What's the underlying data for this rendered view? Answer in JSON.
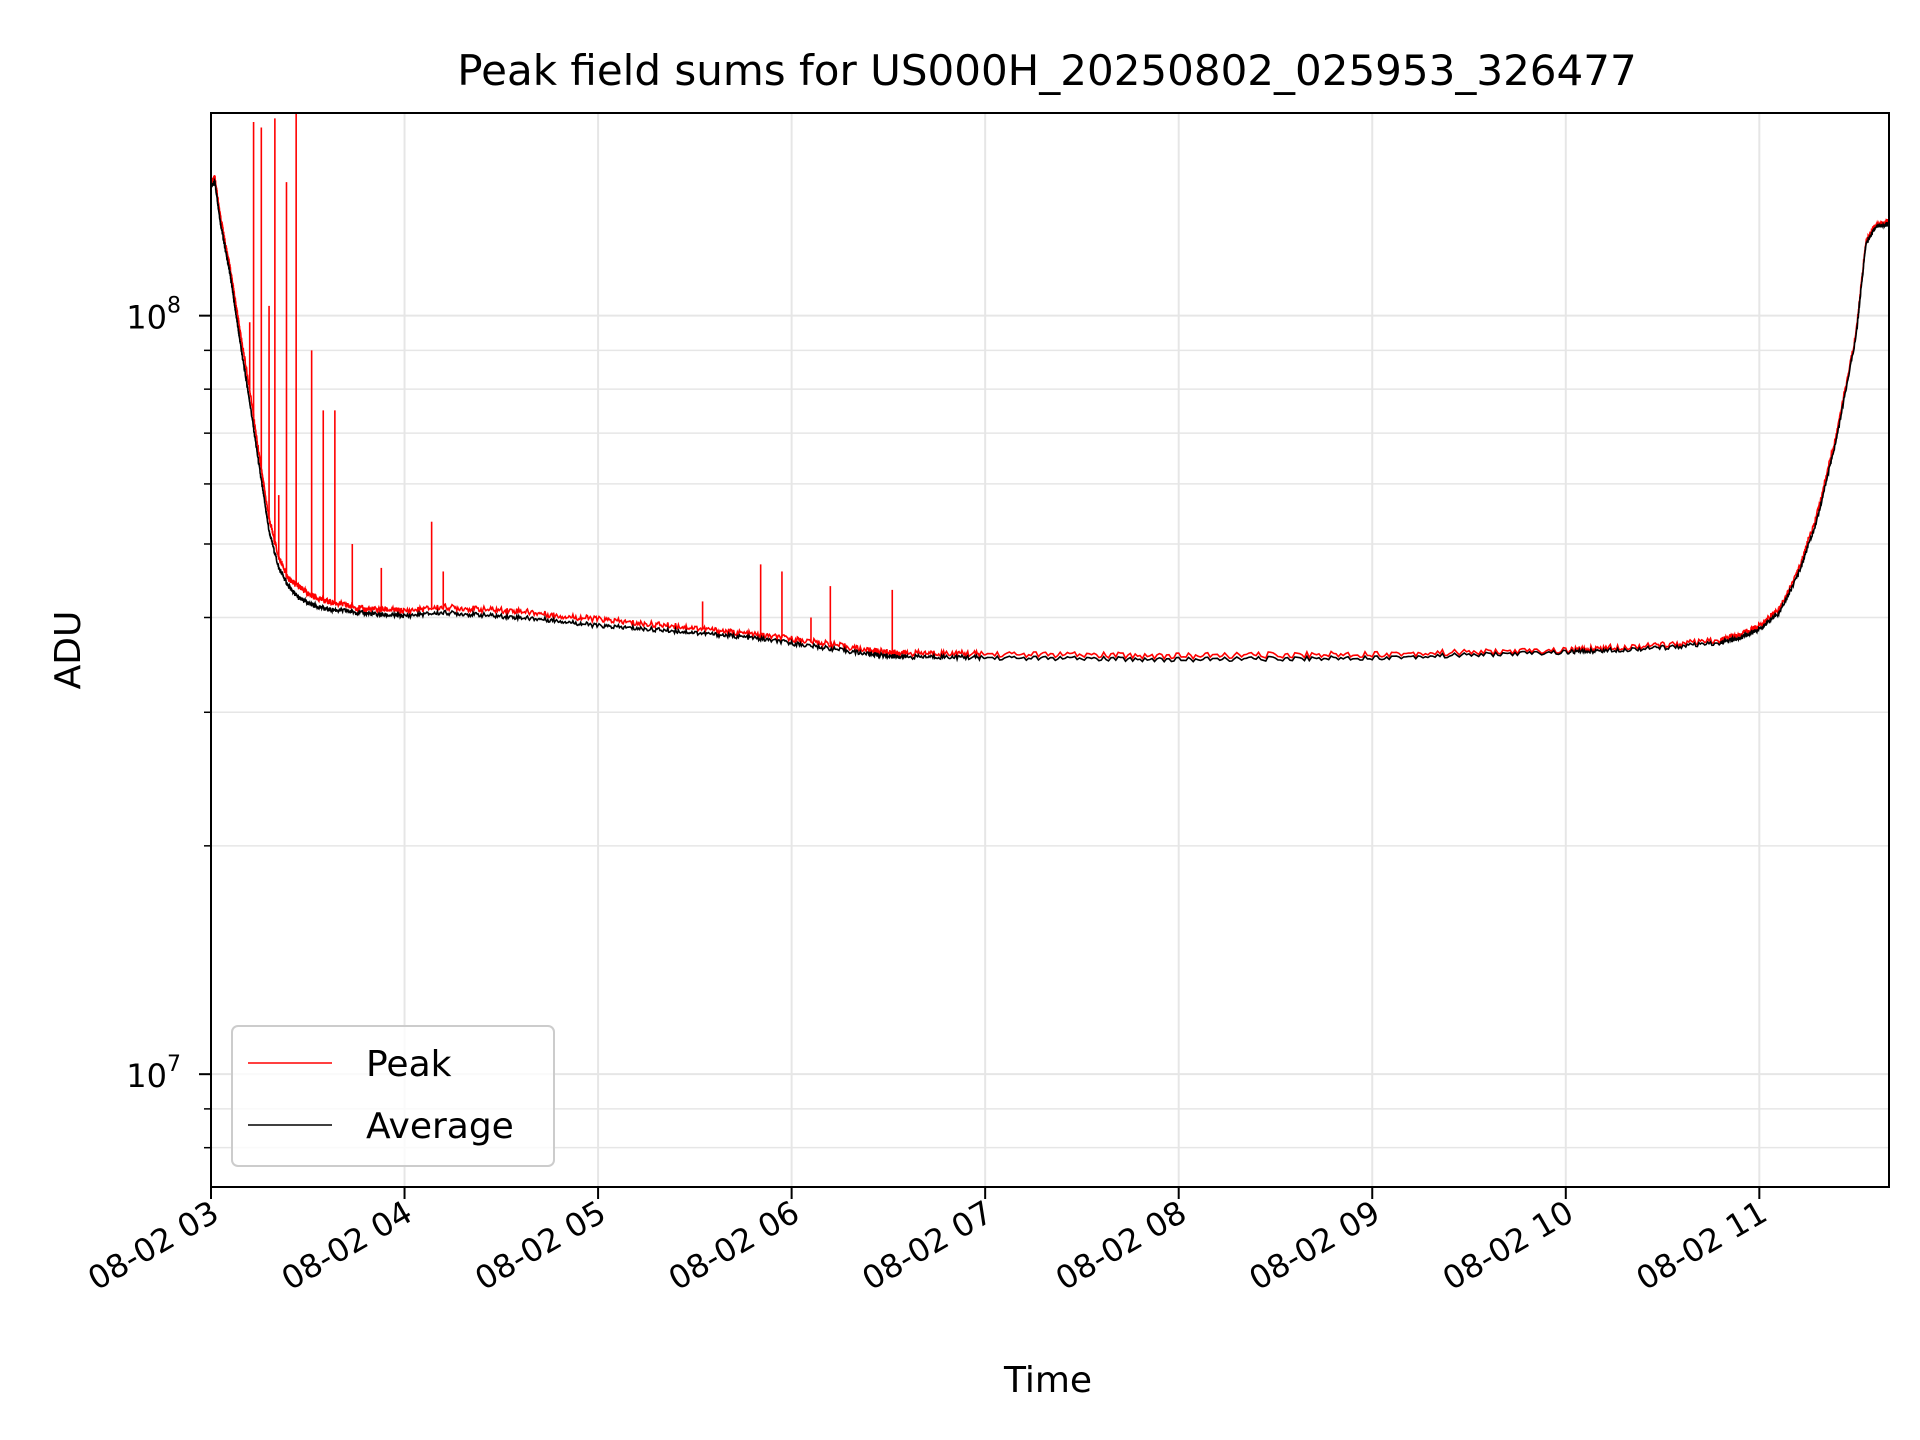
{
  "chart_data": {
    "type": "line",
    "title": "Peak field sums for US000H_20250802_025953_326477",
    "xlabel": "Time",
    "ylabel": "ADU",
    "x_unit": "hours",
    "x_ticks": [
      {
        "value": 3,
        "label": "08-02 03"
      },
      {
        "value": 4,
        "label": "08-02 04"
      },
      {
        "value": 5,
        "label": "08-02 05"
      },
      {
        "value": 6,
        "label": "08-02 06"
      },
      {
        "value": 7,
        "label": "08-02 07"
      },
      {
        "value": 8,
        "label": "08-02 08"
      },
      {
        "value": 9,
        "label": "08-02 09"
      },
      {
        "value": 10,
        "label": "08-02 10"
      },
      {
        "value": 11,
        "label": "08-02 11"
      }
    ],
    "xlim": [
      3.0,
      11.67
    ],
    "y_scale": "log",
    "ylim": [
      7100000,
      185000000
    ],
    "y_ticks": [
      {
        "value": 10000000,
        "base": "10",
        "exp": "7"
      },
      {
        "value": 100000000,
        "base": "10",
        "exp": "8"
      }
    ],
    "grid": true,
    "legend_position": "lower-left",
    "series": [
      {
        "name": "Peak",
        "color": "#ff0000",
        "x": [
          3.0,
          3.02,
          3.05,
          3.08,
          3.1,
          3.13,
          3.16,
          3.2,
          3.25,
          3.3,
          3.35,
          3.4,
          3.45,
          3.5,
          3.6,
          3.7,
          3.8,
          3.9,
          4.0,
          4.2,
          4.4,
          4.6,
          4.8,
          5.0,
          5.2,
          5.4,
          5.6,
          5.8,
          6.0,
          6.2,
          6.4,
          6.5,
          6.6,
          6.8,
          7.0,
          7.5,
          8.0,
          8.5,
          9.0,
          9.5,
          10.0,
          10.2,
          10.5,
          10.8,
          10.9,
          11.0,
          11.1,
          11.2,
          11.3,
          11.4,
          11.5,
          11.55,
          11.6,
          11.67
        ],
        "y": [
          150000000,
          152000000,
          135000000,
          122000000,
          115000000,
          103000000,
          92000000,
          80000000,
          65000000,
          54000000,
          48000000,
          45000000,
          44000000,
          43000000,
          42000000,
          41500000,
          41000000,
          41000000,
          40800000,
          41300000,
          41000000,
          40800000,
          40200000,
          39800000,
          39300000,
          39000000,
          38500000,
          38000000,
          37500000,
          36900000,
          36200000,
          36000000,
          35900000,
          35900000,
          35800000,
          35700000,
          35600000,
          35700000,
          35800000,
          36000000,
          36200000,
          36500000,
          36800000,
          37300000,
          38000000,
          39000000,
          41000000,
          46000000,
          55000000,
          70000000,
          95000000,
          125000000,
          132000000,
          133000000
        ],
        "spikes": [
          {
            "x": 3.2,
            "y": 98000000
          },
          {
            "x": 3.22,
            "y": 180000000
          },
          {
            "x": 3.26,
            "y": 177000000
          },
          {
            "x": 3.3,
            "y": 103000000
          },
          {
            "x": 3.33,
            "y": 182000000
          },
          {
            "x": 3.35,
            "y": 58000000
          },
          {
            "x": 3.39,
            "y": 150000000
          },
          {
            "x": 3.44,
            "y": 190000000
          },
          {
            "x": 3.52,
            "y": 90000000
          },
          {
            "x": 3.58,
            "y": 75000000
          },
          {
            "x": 3.64,
            "y": 75000000
          },
          {
            "x": 3.73,
            "y": 50000000
          },
          {
            "x": 3.88,
            "y": 46500000
          },
          {
            "x": 4.14,
            "y": 53500000
          },
          {
            "x": 4.2,
            "y": 46000000
          },
          {
            "x": 5.54,
            "y": 42000000
          },
          {
            "x": 5.84,
            "y": 47000000
          },
          {
            "x": 5.95,
            "y": 46000000
          },
          {
            "x": 6.1,
            "y": 40000000
          },
          {
            "x": 6.2,
            "y": 44000000
          },
          {
            "x": 6.52,
            "y": 43500000
          }
        ]
      },
      {
        "name": "Average",
        "color": "#000000",
        "x": [
          3.0,
          3.02,
          3.05,
          3.08,
          3.1,
          3.13,
          3.16,
          3.2,
          3.25,
          3.3,
          3.35,
          3.4,
          3.45,
          3.5,
          3.6,
          3.7,
          3.8,
          3.9,
          4.0,
          4.2,
          4.4,
          4.6,
          4.8,
          5.0,
          5.2,
          5.4,
          5.6,
          5.8,
          6.0,
          6.2,
          6.4,
          6.5,
          6.6,
          6.8,
          7.0,
          7.5,
          8.0,
          8.5,
          9.0,
          9.5,
          10.0,
          10.2,
          10.5,
          10.8,
          10.9,
          11.0,
          11.1,
          11.2,
          11.3,
          11.4,
          11.5,
          11.55,
          11.6,
          11.67
        ],
        "y": [
          148000000,
          150000000,
          132000000,
          120000000,
          113000000,
          100000000,
          89000000,
          77000000,
          63000000,
          52000000,
          46500000,
          44000000,
          42500000,
          41800000,
          41000000,
          40800000,
          40500000,
          40300000,
          40200000,
          40600000,
          40300000,
          40000000,
          39600000,
          39000000,
          38700000,
          38400000,
          38000000,
          37600000,
          37000000,
          36400000,
          35800000,
          35600000,
          35500000,
          35500000,
          35400000,
          35300000,
          35200000,
          35300000,
          35400000,
          35700000,
          36000000,
          36200000,
          36500000,
          37000000,
          37600000,
          38600000,
          40500000,
          45500000,
          54000000,
          69000000,
          94000000,
          124000000,
          131000000,
          132000000
        ]
      }
    ]
  }
}
